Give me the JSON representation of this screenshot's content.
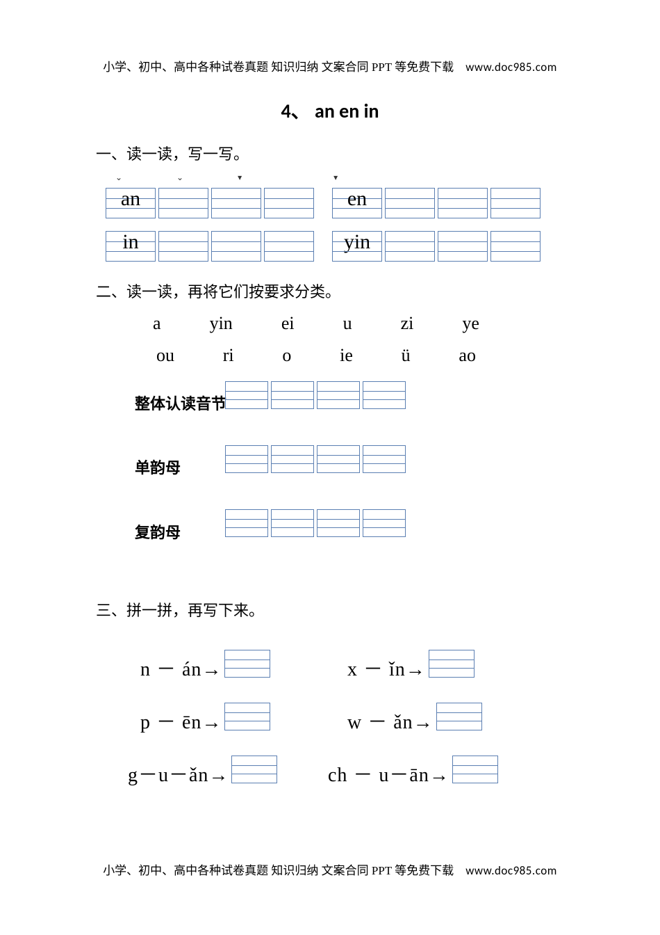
{
  "colors": {
    "grid_line": "#5b7fb2",
    "text": "#000000",
    "background": "#ffffff"
  },
  "header": {
    "cn": "小学、初中、高中各种试卷真题  知识归纳  文案合同  PPT 等免费下载",
    "url": "www.doc985.com"
  },
  "footer": {
    "cn": "小学、初中、高中各种试卷真题  知识归纳  文案合同  PPT 等免费下载",
    "url": "www.doc985.com"
  },
  "title": "4、 an en in",
  "section1": {
    "label": "一、读一读，写一写。",
    "cells": {
      "r1a": [
        "an",
        "",
        "",
        ""
      ],
      "r1b": [
        "en",
        "",
        "",
        ""
      ],
      "r1c": [
        "in",
        "",
        "",
        ""
      ],
      "r1d": [
        "yin",
        "",
        "",
        ""
      ]
    }
  },
  "section2": {
    "label": "二、读一读，再将它们按要求分类。",
    "syllables_row1": [
      "a",
      "yin",
      "ei",
      "u",
      "zi",
      "ye"
    ],
    "syllables_row2": [
      "ou",
      "ri",
      "o",
      "ie",
      "ü",
      "ao"
    ],
    "categories": [
      {
        "label": "整体认读音节",
        "cells": 4
      },
      {
        "label": "单韵母",
        "cells": 4
      },
      {
        "label": "复韵母",
        "cells": 4
      }
    ]
  },
  "section3": {
    "label": "三、拼一拼，再写下来。",
    "items": [
      {
        "text": "n － án→"
      },
      {
        "text": "x － ǐn→"
      },
      {
        "text": "p － ēn→"
      },
      {
        "text": "w － ǎn→"
      },
      {
        "text": "g－u－ǎn→"
      },
      {
        "text": "ch － u－ān→"
      }
    ]
  },
  "typography": {
    "title_fontsize": 28,
    "section_fontsize": 22,
    "syllable_fontsize": 26,
    "combine_fontsize": 28,
    "header_fontsize": 17
  }
}
